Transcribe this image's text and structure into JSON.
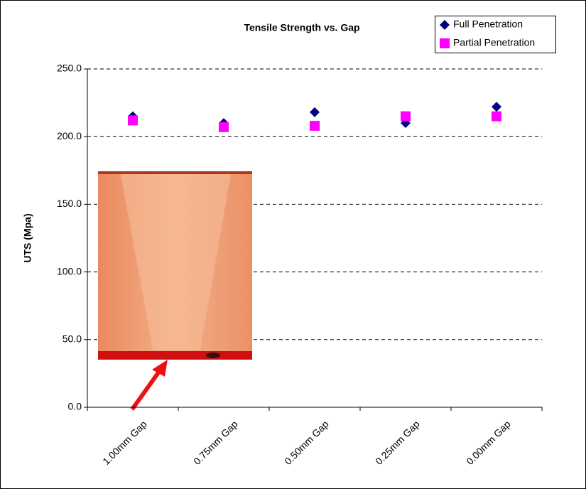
{
  "chart_data": {
    "type": "scatter",
    "title": "Tensile Strength vs. Gap",
    "y_label": "UTS (Mpa)",
    "categories": [
      "1.00mm Gap",
      "0.75mm Gap",
      "0.50mm Gap",
      "0.25mm Gap",
      "0.00mm Gap"
    ],
    "series": [
      {
        "name": "Full Penetration",
        "color": "#000080",
        "marker": "diamond",
        "values": [
          215,
          210,
          218,
          210,
          222
        ]
      },
      {
        "name": "Partial Penetration",
        "color": "#ff00ff",
        "marker": "square",
        "values": [
          212,
          207,
          208,
          215,
          215
        ]
      }
    ],
    "ylim": [
      0,
      250
    ],
    "yticks": [
      {
        "value": 0,
        "label": "0.0"
      },
      {
        "value": 50,
        "label": "50.0"
      },
      {
        "value": 100,
        "label": "100.0"
      },
      {
        "value": 150,
        "label": "150.0"
      },
      {
        "value": 200,
        "label": "200.0"
      },
      {
        "value": 250,
        "label": "250.0"
      }
    ],
    "grid": true,
    "legend": "top-right"
  }
}
